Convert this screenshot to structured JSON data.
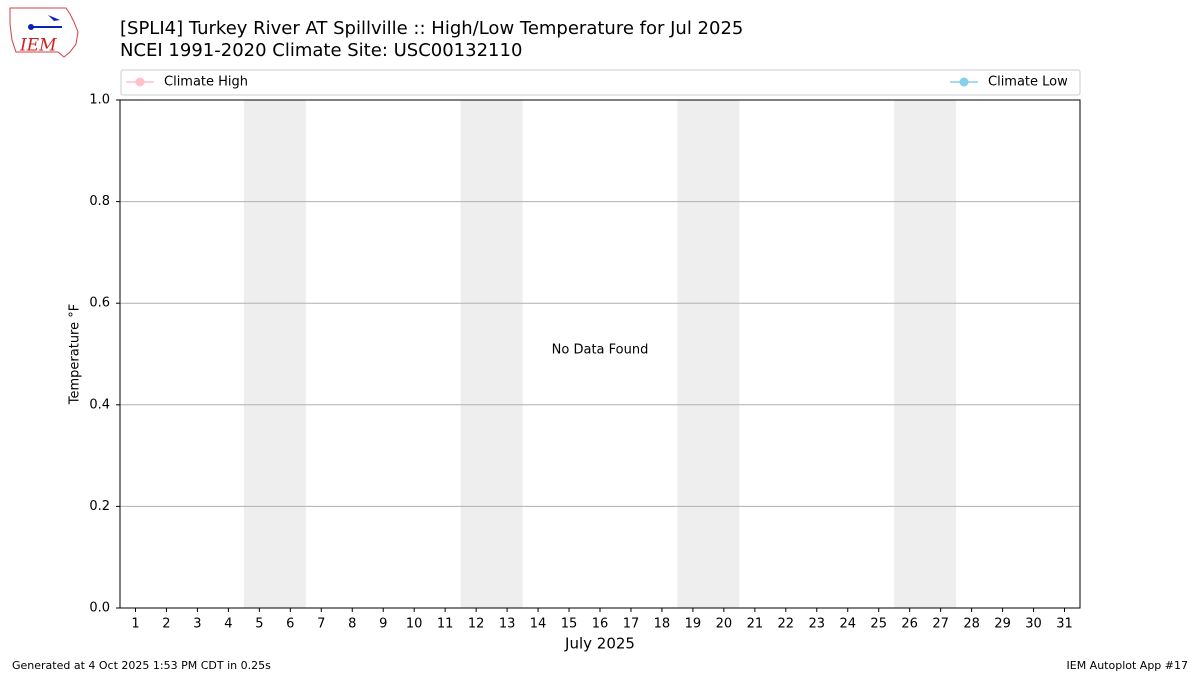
{
  "logo_text": "IEM",
  "chart_data": {
    "type": "line",
    "title": "[SPLI4] Turkey River  AT Spillville :: High/Low Temperature for Jul 2025",
    "subtitle": "NCEI 1991-2020 Climate Site: USC00132110",
    "x_label": "July 2025",
    "y_label": "Temperature °F",
    "annotation": "No Data Found",
    "x": [
      1,
      2,
      3,
      4,
      5,
      6,
      7,
      8,
      9,
      10,
      11,
      12,
      13,
      14,
      15,
      16,
      17,
      18,
      19,
      20,
      21,
      22,
      23,
      24,
      25,
      26,
      27,
      28,
      29,
      30,
      31
    ],
    "xlim": [
      0.5,
      31.5
    ],
    "ylim": [
      0,
      1
    ],
    "yticks": [
      {
        "value": 0,
        "label": "0.0"
      },
      {
        "value": 0.2,
        "label": "0.2"
      },
      {
        "value": 0.4,
        "label": "0.4"
      },
      {
        "value": 0.6,
        "label": "0.6"
      },
      {
        "value": 0.8,
        "label": "0.8"
      },
      {
        "value": 1,
        "label": "1.0"
      }
    ],
    "grid": true,
    "shaded": [
      [
        5,
        6
      ],
      [
        12,
        13
      ],
      [
        19,
        20
      ],
      [
        26,
        27
      ]
    ],
    "series": [
      {
        "name": "Climate High",
        "color": "#ffc0cb",
        "values": [
          null,
          null,
          null,
          null,
          null,
          null,
          null,
          null,
          null,
          null,
          null,
          null,
          null,
          null,
          null,
          null,
          null,
          null,
          null,
          null,
          null,
          null,
          null,
          null,
          null,
          null,
          null,
          null,
          null,
          null,
          null
        ]
      },
      {
        "name": "Climate Low",
        "color": "#87ceeb",
        "values": [
          null,
          null,
          null,
          null,
          null,
          null,
          null,
          null,
          null,
          null,
          null,
          null,
          null,
          null,
          null,
          null,
          null,
          null,
          null,
          null,
          null,
          null,
          null,
          null,
          null,
          null,
          null,
          null,
          null,
          null,
          null
        ]
      }
    ],
    "footer_left": "Generated at 4 Oct 2025 1:53 PM CDT in 0.25s",
    "footer_right": "IEM Autoplot App #17"
  }
}
